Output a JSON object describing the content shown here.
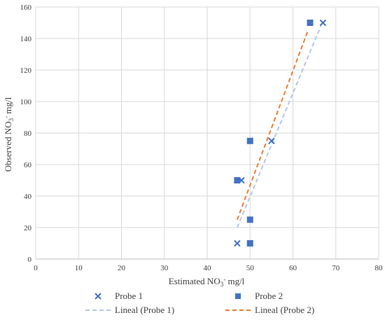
{
  "chart_data": {
    "type": "scatter",
    "xlabel": "Estimated NO₃⁻ mg/l",
    "ylabel": "Observed  NO₃⁻  mg/l",
    "xlim": [
      0,
      80
    ],
    "ylim": [
      0,
      160
    ],
    "x_ticks": [
      0,
      10,
      20,
      30,
      40,
      50,
      60,
      70,
      80
    ],
    "y_ticks": [
      0,
      20,
      40,
      60,
      80,
      100,
      120,
      140,
      160
    ],
    "grid": true,
    "legend_position": "bottom",
    "series": [
      {
        "name": "Probe 1",
        "marker": "x",
        "color": "#4472C4",
        "points": [
          [
            47,
            10
          ],
          [
            48,
            50
          ],
          [
            55,
            75
          ],
          [
            67,
            150
          ]
        ]
      },
      {
        "name": "Probe 2",
        "marker": "square",
        "color": "#4472C4",
        "points": [
          [
            47,
            50
          ],
          [
            50,
            75
          ],
          [
            50,
            25
          ],
          [
            50,
            10
          ],
          [
            64,
            150
          ]
        ]
      }
    ],
    "trendlines": [
      {
        "name": "Lineal (Probe 1)",
        "color": "#B4C7E7",
        "style": "dashed",
        "from": [
          47,
          20
        ],
        "to": [
          66.5,
          148
        ]
      },
      {
        "name": "Lineal (Probe 2)",
        "color": "#ED7D31",
        "style": "dashed",
        "from": [
          47,
          25
        ],
        "to": [
          63.5,
          145
        ]
      }
    ]
  },
  "legend": {
    "probe1": "Probe 1",
    "probe2": "Probe 2",
    "lineal1": "Lineal (Probe 1)",
    "lineal2": "Lineal (Probe 2)"
  }
}
